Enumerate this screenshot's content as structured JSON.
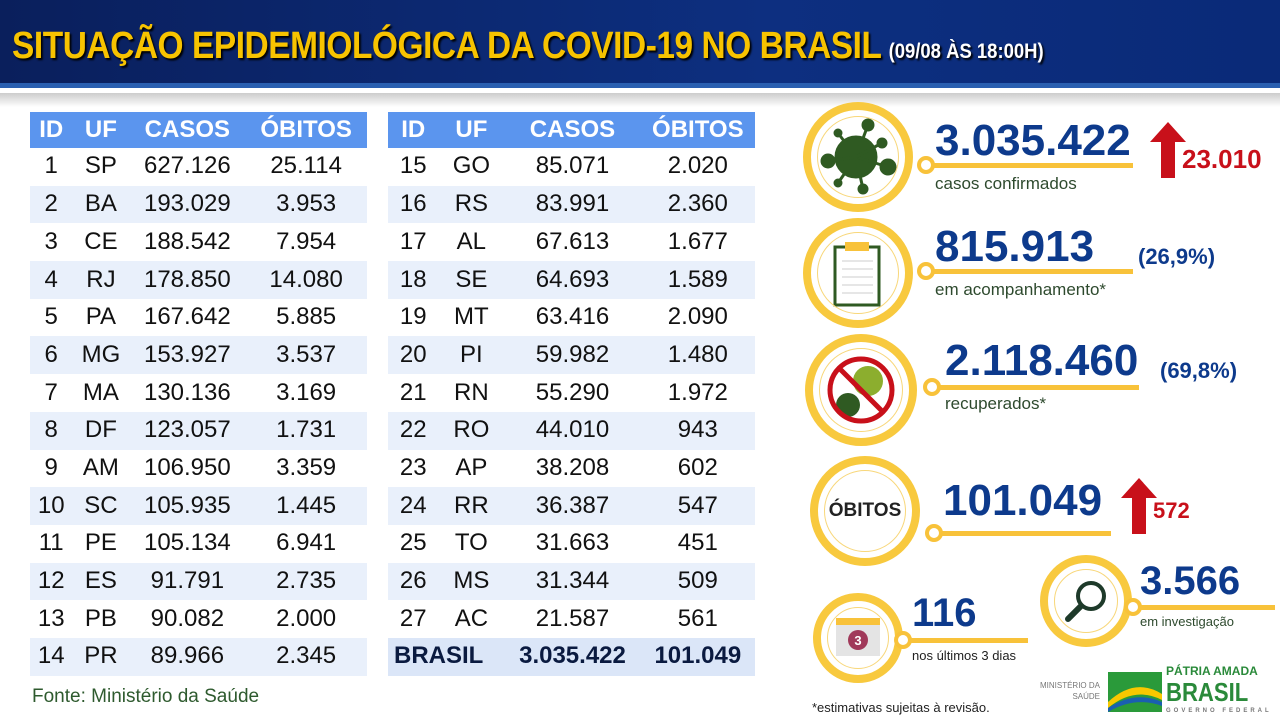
{
  "header": {
    "title": "SITUAÇÃO EPIDEMIOLÓGICA DA COVID-19 NO BRASIL",
    "subtitle": "(09/08 ÀS 18:00H)"
  },
  "table": {
    "columns": [
      "ID",
      "UF",
      "CASOS",
      "ÓBITOS"
    ],
    "rows_left": [
      [
        "1",
        "SP",
        "627.126",
        "25.114"
      ],
      [
        "2",
        "BA",
        "193.029",
        "3.953"
      ],
      [
        "3",
        "CE",
        "188.542",
        "7.954"
      ],
      [
        "4",
        "RJ",
        "178.850",
        "14.080"
      ],
      [
        "5",
        "PA",
        "167.642",
        "5.885"
      ],
      [
        "6",
        "MG",
        "153.927",
        "3.537"
      ],
      [
        "7",
        "MA",
        "130.136",
        "3.169"
      ],
      [
        "8",
        "DF",
        "123.057",
        "1.731"
      ],
      [
        "9",
        "AM",
        "106.950",
        "3.359"
      ],
      [
        "10",
        "SC",
        "105.935",
        "1.445"
      ],
      [
        "11",
        "PE",
        "105.134",
        "6.941"
      ],
      [
        "12",
        "ES",
        "91.791",
        "2.735"
      ],
      [
        "13",
        "PB",
        "90.082",
        "2.000"
      ],
      [
        "14",
        "PR",
        "89.966",
        "2.345"
      ]
    ],
    "rows_right": [
      [
        "15",
        "GO",
        "85.071",
        "2.020"
      ],
      [
        "16",
        "RS",
        "83.991",
        "2.360"
      ],
      [
        "17",
        "AL",
        "67.613",
        "1.677"
      ],
      [
        "18",
        "SE",
        "64.693",
        "1.589"
      ],
      [
        "19",
        "MT",
        "63.416",
        "2.090"
      ],
      [
        "20",
        "PI",
        "59.982",
        "1.480"
      ],
      [
        "21",
        "RN",
        "55.290",
        "1.972"
      ],
      [
        "22",
        "RO",
        "44.010",
        "943"
      ],
      [
        "23",
        "AP",
        "38.208",
        "602"
      ],
      [
        "24",
        "RR",
        "36.387",
        "547"
      ],
      [
        "25",
        "TO",
        "31.663",
        "451"
      ],
      [
        "26",
        "MS",
        "31.344",
        "509"
      ],
      [
        "27",
        "AC",
        "21.587",
        "561"
      ]
    ],
    "total": {
      "label": "BRASIL",
      "casos": "3.035.422",
      "obitos": "101.049"
    }
  },
  "source": "Fonte: Ministério da Saúde",
  "stats": {
    "confirmed": {
      "value": "3.035.422",
      "label": "casos confirmados",
      "increase": "23.010"
    },
    "monitoring": {
      "value": "815.913",
      "label": "em acompanhamento*",
      "pct": "(26,9%)"
    },
    "recovered": {
      "value": "2.118.460",
      "label": "recuperados*",
      "pct": "(69,8%)"
    },
    "deaths": {
      "circle_label": "ÓBITOS",
      "value": "101.049",
      "increase": "572"
    },
    "last3": {
      "value": "116",
      "label": "nos últimos 3 dias",
      "calendar": "3"
    },
    "investigation": {
      "value": "3.566",
      "label": "em investigação"
    }
  },
  "footnote": "*estimativas sujeitas à revisão.",
  "logos": {
    "ministry": "MINISTÉRIO DA SAÚDE",
    "brand_top": "PÁTRIA AMADA",
    "brand_main": "BRASIL",
    "brand_sub": "GOVERNO FEDERAL"
  }
}
